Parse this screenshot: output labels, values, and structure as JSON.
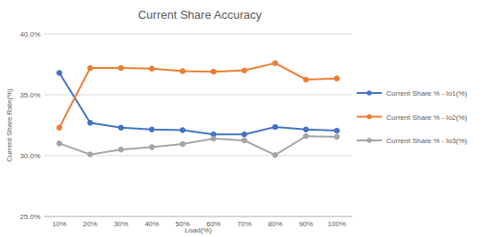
{
  "chart_data": {
    "type": "line",
    "title": "Current Share Accuracy",
    "x_label": "Load(%)",
    "y_label": "Current Share Rate(%)",
    "categories": [
      "10%",
      "20%",
      "30%",
      "40%",
      "50%",
      "60%",
      "70%",
      "80%",
      "90%",
      "100%"
    ],
    "series": [
      {
        "name": "Current Share % - Io1(%)",
        "color": "#4472c4",
        "marker": "circle",
        "values": [
          36.8,
          32.7,
          32.3,
          32.15,
          32.1,
          31.75,
          31.75,
          32.35,
          32.15,
          32.05
        ]
      },
      {
        "name": "Current Share % - Io2(%)",
        "color": "#ed7d31",
        "marker": "circle",
        "values": [
          32.3,
          37.2,
          37.2,
          37.15,
          36.95,
          36.9,
          37.0,
          37.6,
          36.25,
          36.35
        ]
      },
      {
        "name": "Current Share % - Io3(%)",
        "color": "#a5a5a5",
        "marker": "circle",
        "values": [
          31.0,
          30.1,
          30.5,
          30.7,
          30.95,
          31.4,
          31.25,
          30.05,
          31.6,
          31.55
        ]
      }
    ],
    "ylim": [
      25,
      40
    ],
    "yticks": [
      {
        "value": 25,
        "label": "25.0%"
      },
      {
        "value": 30,
        "label": "30.0%"
      },
      {
        "value": 35,
        "label": "35.0%"
      },
      {
        "value": 40,
        "label": "40.0%"
      }
    ],
    "grid": true,
    "legend": "right"
  }
}
